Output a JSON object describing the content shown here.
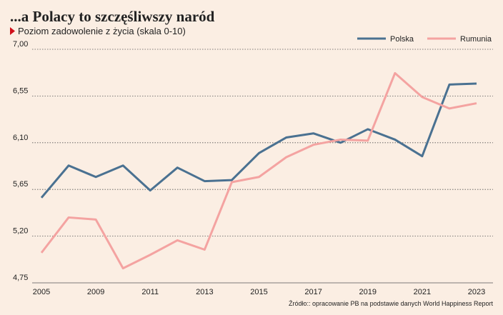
{
  "chart_data": {
    "type": "line",
    "title": "...a Polacy to szczęśliwszy naród",
    "subtitle": "Poziom zadowolenie z życia (skala 0-10)",
    "source": "Źródło:: opracowanie PB na podstawie danych World Happiness Report",
    "categories": [
      "2005",
      null,
      "2009",
      null,
      "2011",
      null,
      "2013",
      null,
      "2015",
      null,
      "2017",
      null,
      "2019",
      null,
      "2021",
      null,
      "2023"
    ],
    "series": [
      {
        "name": "Polska",
        "color": "#4a7191",
        "values": [
          5.57,
          5.88,
          5.77,
          5.88,
          5.64,
          5.86,
          5.73,
          5.74,
          6.0,
          6.15,
          6.19,
          6.1,
          6.23,
          6.13,
          5.97,
          6.66,
          6.67
        ]
      },
      {
        "name": "Rumunia",
        "color": "#f4a3a1",
        "values": [
          5.04,
          5.38,
          5.36,
          4.89,
          5.02,
          5.16,
          5.07,
          5.72,
          5.77,
          5.96,
          6.08,
          6.13,
          6.12,
          6.77,
          6.54,
          6.43,
          6.48
        ]
      }
    ],
    "ylim": [
      4.75,
      7.0
    ],
    "yticks": [
      {
        "value": 4.75,
        "label": "4,75"
      },
      {
        "value": 5.2,
        "label": "5,20"
      },
      {
        "value": 5.65,
        "label": "5,65"
      },
      {
        "value": 6.1,
        "label": "6,10"
      },
      {
        "value": 6.55,
        "label": "6,55"
      },
      {
        "value": 7.0,
        "label": "7,00"
      }
    ],
    "grid": true,
    "legend": "top-right"
  }
}
